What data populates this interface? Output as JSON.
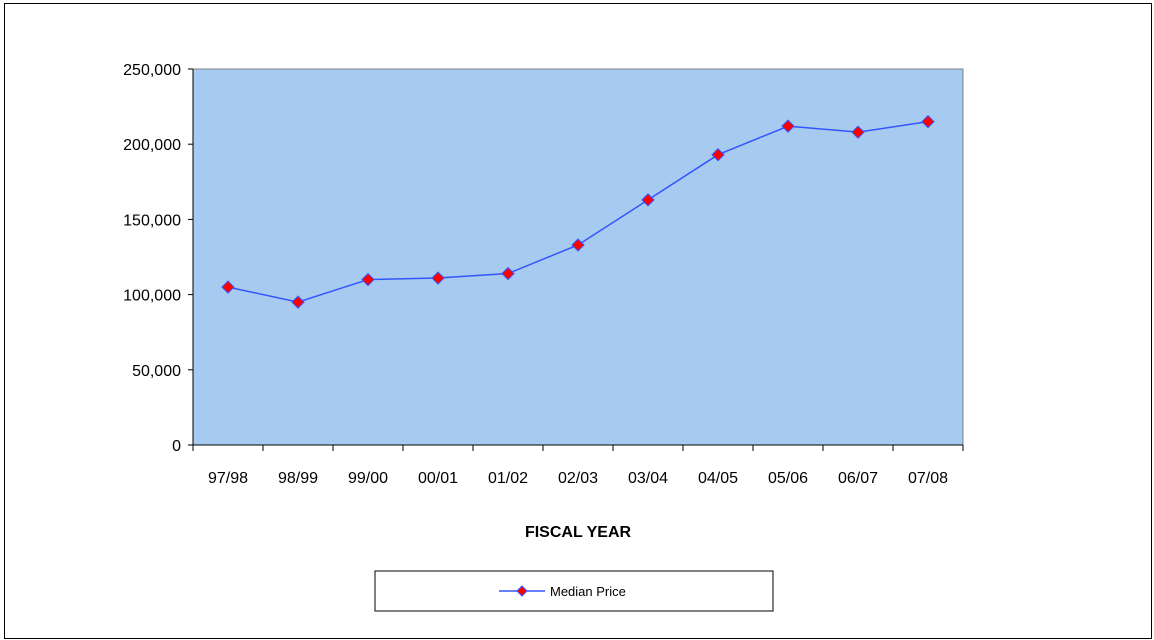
{
  "chart_data": {
    "type": "line",
    "title": "",
    "xlabel": "FISCAL YEAR",
    "ylabel": "",
    "categories": [
      "97/98",
      "98/99",
      "99/00",
      "00/01",
      "01/02",
      "02/03",
      "03/04",
      "04/05",
      "05/06",
      "06/07",
      "07/08"
    ],
    "series": [
      {
        "name": "Median Price",
        "values": [
          105000,
          95000,
          110000,
          111000,
          114000,
          133000,
          163000,
          193000,
          212000,
          208000,
          215000
        ],
        "line_color": "#3355ff",
        "marker_color": "#ff0000",
        "marker": "diamond"
      }
    ],
    "ylim": [
      0,
      250000
    ],
    "yticks": [
      0,
      50000,
      100000,
      150000,
      200000,
      250000
    ],
    "ytick_labels": [
      "0",
      "50,000",
      "100,000",
      "150,000",
      "200,000",
      "250,000"
    ],
    "grid": false,
    "plot_background": "#a6caf0",
    "legend_position": "bottom-center"
  }
}
